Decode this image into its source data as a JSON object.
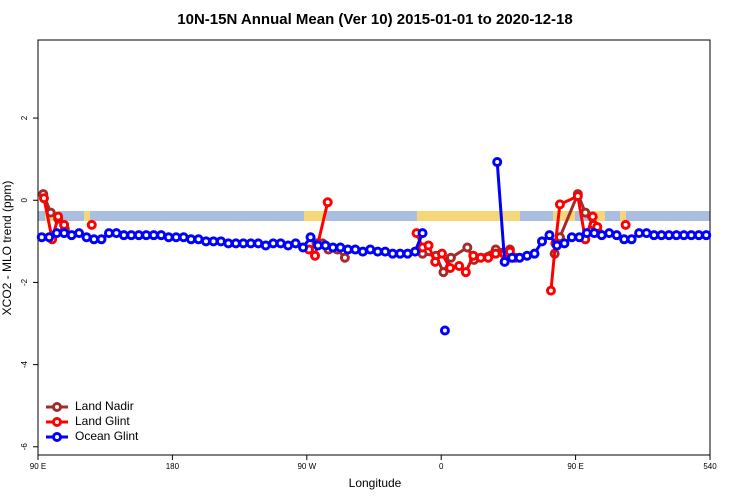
{
  "chart_data": {
    "type": "line",
    "title": "10N-15N Annual Mean (Ver 10)   2015-01-01 to 2020-12-18",
    "x_label": "Longitude",
    "y_label": "XCO2 - MLO trend (ppm)",
    "xlim": [
      90,
      540
    ],
    "xticks": [
      {
        "value": 90,
        "label": "90 E"
      },
      180,
      {
        "value": 270,
        "label": "90 W"
      },
      {
        "value": 360,
        "label": "0"
      },
      {
        "value": 450,
        "label": "90 E"
      },
      540
    ],
    "ylim": [
      -6.2,
      3.9
    ],
    "yticks": [
      2,
      0,
      -2,
      -4,
      -6
    ],
    "legend": "bottom-left",
    "series": [
      {
        "name": "Land Nadir",
        "color": "#a52a2a",
        "x": [
          93.5,
          98.5,
          103.5,
          108,
          null,
          276.5,
          280.5,
          284.5,
          290.5,
          295.5,
          null,
          347.5,
          356.5,
          361.5,
          366.5,
          377.5,
          382,
          396.5,
          406,
          null,
          436,
          439.5,
          451.5,
          456.5,
          462,
          465.5
        ],
        "values": [
          0.15,
          -0.3,
          -0.45,
          -0.7,
          null,
          -1.05,
          -1.05,
          -1.2,
          -1.2,
          -1.4,
          null,
          -1.3,
          -1.35,
          -1.75,
          -1.4,
          -1.15,
          -1.45,
          -1.2,
          -1.2,
          null,
          -1.3,
          -0.9,
          0.15,
          -0.3,
          -0.6,
          -0.8
        ]
      },
      {
        "name": "Land Glint",
        "color": "#ff0000",
        "x": [
          94,
          99.5,
          103.5,
          107.5,
          null,
          126,
          null,
          271.5,
          275.5,
          284,
          null,
          343.5,
          347.5,
          351.5,
          356,
          360.5,
          366,
          372,
          376.5,
          381.5,
          386.5,
          391.5,
          396.5,
          402,
          406,
          409.5,
          null,
          433.5,
          436.5,
          439.5,
          451.5,
          456.5,
          461.5,
          464.5,
          null,
          483.5
        ],
        "values": [
          0.05,
          -0.95,
          -0.4,
          -0.6,
          null,
          -0.6,
          null,
          -1.2,
          -1.35,
          -0.05,
          null,
          -0.8,
          -1.15,
          -1.1,
          -1.5,
          -1.3,
          -1.65,
          -1.6,
          -1.75,
          -1.35,
          -1.4,
          -1.4,
          -1.3,
          -1.3,
          -1.25,
          -1.4,
          null,
          -2.2,
          -1.05,
          -0.1,
          0.1,
          -0.95,
          -0.4,
          -0.65,
          null,
          -0.6
        ]
      },
      {
        "name": "Ocean Glint",
        "color": "#0000ff",
        "x": [
          92.5,
          97.5,
          102.5,
          107.5,
          112.5,
          117.5,
          122.5,
          127.5,
          132.5,
          137.5,
          142.5,
          147.5,
          152.5,
          157.5,
          162.5,
          167.5,
          172.5,
          177.5,
          182.5,
          187.5,
          192.5,
          197.5,
          202.5,
          207.5,
          212.5,
          217.5,
          222.5,
          227.5,
          232.5,
          237.5,
          242.5,
          247.5,
          252.5,
          257.5,
          262.5,
          267.5,
          272.5,
          277.5,
          282.5,
          287.5,
          292.5,
          297.5,
          302.5,
          307.5,
          312.5,
          317.5,
          322.5,
          327.5,
          332.5,
          337.5,
          342.5,
          347.5,
          null,
          362.5,
          null,
          397.5,
          402.5,
          407.5,
          412.5,
          417.5,
          422.5,
          427.5,
          432.5,
          437.5,
          442.5,
          447.5,
          452.5,
          457.5,
          462.5,
          467.5,
          472.5,
          477.5,
          482.5,
          487.5,
          492.5,
          497.5,
          502.5,
          507.5,
          512.5,
          517.5,
          522.5,
          527.5,
          532.5,
          537.5
        ],
        "values": [
          -0.9,
          -0.9,
          -0.8,
          -0.8,
          -0.85,
          -0.8,
          -0.9,
          -0.95,
          -0.95,
          -0.8,
          -0.8,
          -0.85,
          -0.85,
          -0.85,
          -0.85,
          -0.85,
          -0.85,
          -0.9,
          -0.9,
          -0.9,
          -0.95,
          -0.95,
          -1.0,
          -1.0,
          -1.0,
          -1.05,
          -1.05,
          -1.05,
          -1.05,
          -1.05,
          -1.1,
          -1.05,
          -1.05,
          -1.1,
          -1.05,
          -1.15,
          -0.9,
          -1.1,
          -1.1,
          -1.15,
          -1.15,
          -1.2,
          -1.2,
          -1.25,
          -1.2,
          -1.25,
          -1.25,
          -1.3,
          -1.3,
          -1.3,
          -1.25,
          -0.8,
          null,
          -3.17,
          null,
          0.93,
          -1.5,
          -1.4,
          -1.4,
          -1.35,
          -1.3,
          -1.0,
          -0.85,
          -1.1,
          -1.05,
          -0.9,
          -0.9,
          -0.8,
          -0.8,
          -0.85,
          -0.8,
          -0.85,
          -0.95,
          -0.95,
          -0.8,
          -0.8,
          -0.85,
          -0.85,
          -0.85,
          -0.85,
          -0.85,
          -0.85,
          -0.85,
          -0.85
        ]
      }
    ]
  }
}
